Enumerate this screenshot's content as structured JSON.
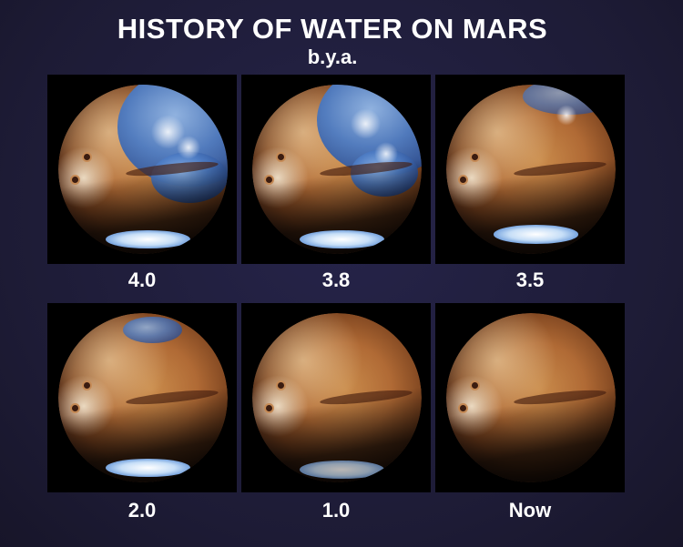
{
  "title": "HISTORY OF WATER ON MARS",
  "subtitle": "b.y.a.",
  "panels": [
    {
      "label": "4.0",
      "water_stage": "extensive ocean"
    },
    {
      "label": "3.8",
      "water_stage": "extensive ocean"
    },
    {
      "label": "3.5",
      "water_stage": "northern seas remnant"
    },
    {
      "label": "2.0",
      "water_stage": "small northern sea"
    },
    {
      "label": "1.0",
      "water_stage": "traces of water"
    },
    {
      "label": "Now",
      "water_stage": "dry"
    }
  ],
  "colors": {
    "background": "#1f1d38",
    "text": "#ffffff",
    "ocean": "#4d7cc4",
    "mars_surface": "#c98b4b"
  }
}
